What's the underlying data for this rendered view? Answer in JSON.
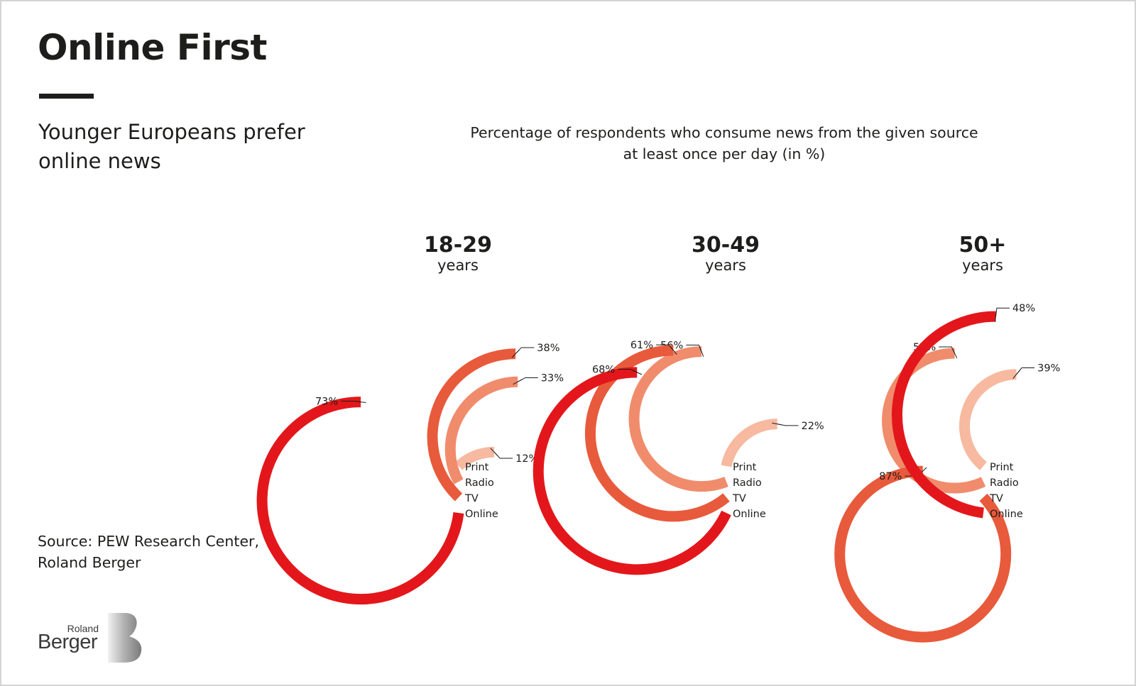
{
  "title": "Online First",
  "subtitle_lines": [
    "Younger Europeans prefer",
    "online news"
  ],
  "chart_title_lines": [
    "Percentage of respondents who consume news from the given source",
    "at least once per day (in %)"
  ],
  "source_lines": [
    "Source: PEW Research Center,",
    "Roland Berger"
  ],
  "logo": {
    "line1": "Roland",
    "line2": "Berger"
  },
  "colors": {
    "Online": "#e3171b",
    "TV": "#e85a3c",
    "Radio": "#f08c6c",
    "Print": "#f7b9a0"
  },
  "chart_data": [
    {
      "type": "radial-bar",
      "group_label": "18-29",
      "group_sublabel": "years",
      "series": [
        {
          "name": "Print",
          "value": 12,
          "label": "12%"
        },
        {
          "name": "Radio",
          "value": 33,
          "label": "33%"
        },
        {
          "name": "TV",
          "value": 38,
          "label": "38%"
        },
        {
          "name": "Online",
          "value": 73,
          "label": "73%"
        }
      ]
    },
    {
      "type": "radial-bar",
      "group_label": "30-49",
      "group_sublabel": "years",
      "series": [
        {
          "name": "Print",
          "value": 22,
          "label": "22%"
        },
        {
          "name": "Radio",
          "value": 56,
          "label": "56%"
        },
        {
          "name": "TV",
          "value": 61,
          "label": "61%"
        },
        {
          "name": "Online",
          "value": 68,
          "label": "68%"
        }
      ]
    },
    {
      "type": "radial-bar",
      "group_label": "50+",
      "group_sublabel": "years",
      "series": [
        {
          "name": "Print",
          "value": 39,
          "label": "39%"
        },
        {
          "name": "Radio",
          "value": 57,
          "label": "57%"
        },
        {
          "name": "TV",
          "value": 87,
          "label": "87%"
        },
        {
          "name": "Online",
          "value": 48,
          "label": "48%"
        }
      ]
    }
  ]
}
